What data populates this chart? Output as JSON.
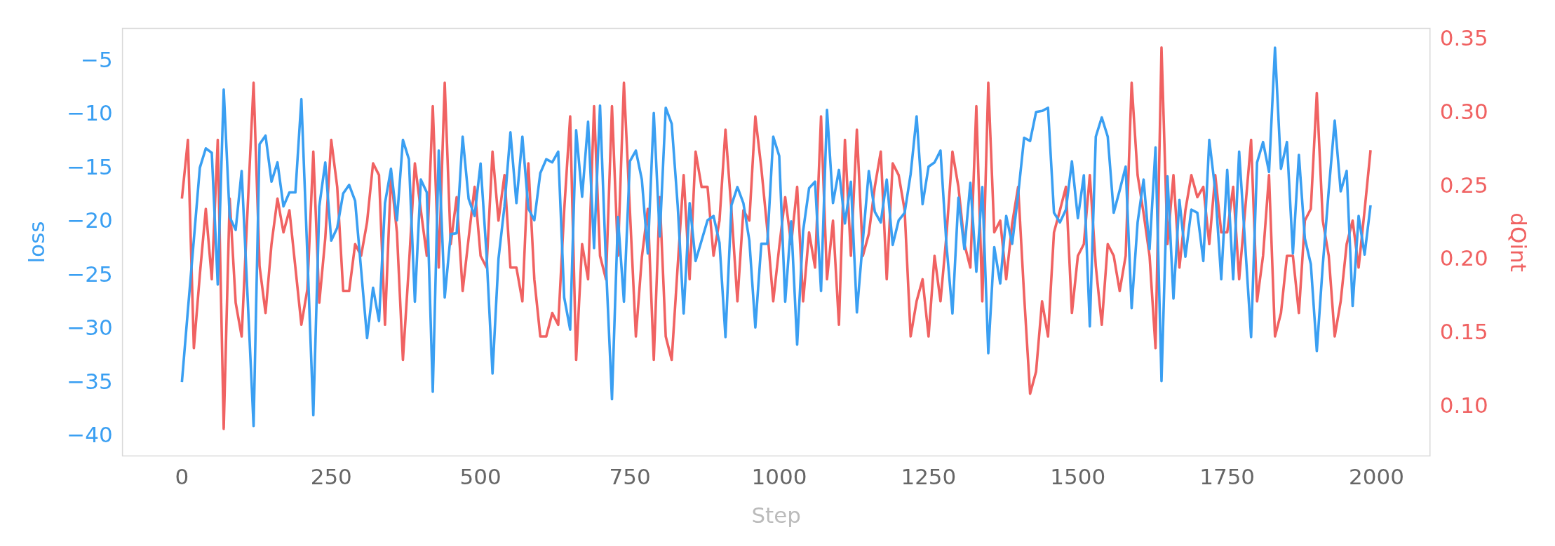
{
  "chart_data": {
    "type": "line",
    "xlabel": "Step",
    "ylabel": "loss",
    "y2label": "dQint",
    "x": [
      0,
      10,
      20,
      30,
      40,
      50,
      60,
      70,
      80,
      90,
      100,
      110,
      120,
      130,
      140,
      150,
      160,
      170,
      180,
      190,
      200,
      210,
      220,
      230,
      240,
      250,
      260,
      270,
      280,
      290,
      300,
      310,
      320,
      330,
      340,
      350,
      360,
      370,
      380,
      390,
      400,
      410,
      420,
      430,
      440,
      450,
      460,
      470,
      480,
      490,
      500,
      510,
      520,
      530,
      540,
      550,
      560,
      570,
      580,
      590,
      600,
      610,
      620,
      630,
      640,
      650,
      660,
      670,
      680,
      690,
      700,
      710,
      720,
      730,
      740,
      750,
      760,
      770,
      780,
      790,
      800,
      810,
      820,
      830,
      840,
      850,
      860,
      870,
      880,
      890,
      900,
      910,
      920,
      930,
      940,
      950,
      960,
      970,
      980,
      990,
      1000,
      1010,
      1020,
      1030,
      1040,
      1050,
      1060,
      1070,
      1080,
      1090,
      1100,
      1110,
      1120,
      1130,
      1140,
      1150,
      1160,
      1170,
      1180,
      1190,
      1200,
      1210,
      1220,
      1230,
      1240,
      1250,
      1260,
      1270,
      1280,
      1290,
      1300,
      1310,
      1320,
      1330,
      1340,
      1350,
      1360,
      1370,
      1380,
      1390,
      1400,
      1410,
      1420,
      1430,
      1440,
      1450,
      1460,
      1470,
      1480,
      1490,
      1500,
      1510,
      1520,
      1530,
      1540,
      1550,
      1560,
      1570,
      1580,
      1590,
      1600,
      1610,
      1620,
      1630,
      1640,
      1650,
      1660,
      1670,
      1680,
      1690,
      1700,
      1710,
      1720,
      1730,
      1740,
      1750,
      1760,
      1770,
      1780,
      1790,
      1800,
      1810,
      1820,
      1830,
      1840,
      1850,
      1860,
      1870,
      1880,
      1890,
      1900,
      1910,
      1920,
      1930,
      1940,
      1950,
      1960,
      1970,
      1980,
      1990
    ],
    "series": [
      {
        "color": "#3a9ff2",
        "values": [
          -34.9,
          -28.2,
          -21.6,
          -14.9,
          -13.1,
          -13.5,
          -25.8,
          -7.6,
          -19.5,
          -20.7,
          -15.2,
          -27,
          -39,
          -12.7,
          -11.9,
          -16.2,
          -14.4,
          -18.5,
          -17.2,
          -17.2,
          -8.5,
          -23,
          -38,
          -18.5,
          -14.4,
          -21.7,
          -20.5,
          -17.3,
          -16.5,
          -18,
          -24.4,
          -30.8,
          -26.1,
          -29.2,
          -18.2,
          -15,
          -19.8,
          -12.3,
          -14.1,
          -27.4,
          -16,
          -17.2,
          -35.8,
          -13.3,
          -27,
          -21.1,
          -21,
          -12,
          -17.8,
          -19.4,
          -14.5,
          -23,
          -34.1,
          -23.4,
          -18.5,
          -11.6,
          -18.2,
          -12,
          -18.7,
          -19.8,
          -15.4,
          -14.1,
          -14.4,
          -13.4,
          -27,
          -30,
          -11.4,
          -17.6,
          -10.6,
          -22.4,
          -9.1,
          -24,
          -36.5,
          -19.5,
          -27.4,
          -14.3,
          -13.3,
          -16,
          -22.9,
          -9.8,
          -21.3,
          -9.3,
          -10.8,
          -18.4,
          -28.5,
          -18.2,
          -23.6,
          -21.7,
          -19.8,
          -19.4,
          -21.9,
          -30.7,
          -18.4,
          -16.7,
          -18.2,
          -21.7,
          -29.8,
          -22,
          -22,
          -12,
          -13.8,
          -27.4,
          -19.9,
          -31.4,
          -20.8,
          -16.8,
          -16.2,
          -26.4,
          -9.5,
          -18.2,
          -15.1,
          -20.1,
          -16.2,
          -28.4,
          -21.7,
          -15.2,
          -19,
          -20,
          -16,
          -22.1,
          -19.8,
          -19.1,
          -15.5,
          -10.1,
          -18.3,
          -14.8,
          -14.4,
          -13.3,
          -22.1,
          -28.5,
          -17.7,
          -22.5,
          -16.3,
          -24.6,
          -16.7,
          -32.2,
          -22.3,
          -25.7,
          -19.4,
          -22,
          -17.4,
          -12.1,
          -12.4,
          -9.7,
          -9.6,
          -9.3,
          -19.1,
          -20,
          -18.8,
          -14.3,
          -19.6,
          -15.6,
          -29.7,
          -12,
          -10.2,
          -12,
          -19.1,
          -17,
          -14.8,
          -28,
          -20,
          -16,
          -22.5,
          -13,
          -34.8,
          -15.7,
          -27.1,
          -17.9,
          -23.2,
          -18.8,
          -19.1,
          -23.6,
          -12.3,
          -17,
          -25.3,
          -15.1,
          -25.3,
          -13.4,
          -22,
          -30.7,
          -14.4,
          -12.5,
          -15.3,
          -3.7,
          -15,
          -12.5,
          -22.9,
          -13.7,
          -21.5,
          -23.9,
          -32,
          -24,
          -17,
          -10.5,
          -17.1,
          -15.2,
          -27.8,
          -19.4,
          -23,
          -18.4
        ]
      },
      {
        "color": "#f06262",
        "axis": "y2",
        "values": [
          0.242,
          0.282,
          0.14,
          0.19,
          0.235,
          0.187,
          0.282,
          0.085,
          0.242,
          0.171,
          0.148,
          0.235,
          0.321,
          0.196,
          0.164,
          0.211,
          0.242,
          0.219,
          0.234,
          0.195,
          0.156,
          0.18,
          0.274,
          0.171,
          0.215,
          0.282,
          0.25,
          0.179,
          0.179,
          0.211,
          0.203,
          0.226,
          0.266,
          0.258,
          0.156,
          0.258,
          0.219,
          0.132,
          0.196,
          0.266,
          0.234,
          0.203,
          0.305,
          0.195,
          0.321,
          0.211,
          0.243,
          0.179,
          0.215,
          0.25,
          0.203,
          0.195,
          0.274,
          0.227,
          0.258,
          0.195,
          0.195,
          0.172,
          0.266,
          0.187,
          0.148,
          0.148,
          0.164,
          0.156,
          0.234,
          0.298,
          0.132,
          0.211,
          0.187,
          0.305,
          0.203,
          0.187,
          0.305,
          0.203,
          0.321,
          0.234,
          0.148,
          0.202,
          0.235,
          0.132,
          0.243,
          0.148,
          0.132,
          0.196,
          0.258,
          0.187,
          0.274,
          0.25,
          0.25,
          0.203,
          0.227,
          0.289,
          0.234,
          0.172,
          0.234,
          0.227,
          0.298,
          0.263,
          0.221,
          0.172,
          0.209,
          0.243,
          0.211,
          0.25,
          0.172,
          0.219,
          0.195,
          0.298,
          0.187,
          0.227,
          0.156,
          0.282,
          0.203,
          0.289,
          0.203,
          0.218,
          0.25,
          0.274,
          0.187,
          0.266,
          0.258,
          0.234,
          0.148,
          0.172,
          0.187,
          0.148,
          0.203,
          0.172,
          0.217,
          0.274,
          0.25,
          0.211,
          0.195,
          0.305,
          0.172,
          0.321,
          0.219,
          0.227,
          0.187,
          0.225,
          0.25,
          0.176,
          0.109,
          0.124,
          0.172,
          0.148,
          0.219,
          0.234,
          0.25,
          0.164,
          0.203,
          0.211,
          0.258,
          0.196,
          0.156,
          0.211,
          0.203,
          0.179,
          0.203,
          0.321,
          0.258,
          0.232,
          0.203,
          0.14,
          0.345,
          0.211,
          0.258,
          0.195,
          0.234,
          0.258,
          0.243,
          0.25,
          0.211,
          0.258,
          0.219,
          0.219,
          0.25,
          0.187,
          0.234,
          0.282,
          0.172,
          0.203,
          0.258,
          0.148,
          0.164,
          0.203,
          0.203,
          0.164,
          0.227,
          0.235,
          0.314,
          0.227,
          0.203,
          0.148,
          0.172,
          0.211,
          0.227,
          0.195,
          0.234,
          0.275
        ]
      }
    ],
    "xlim": [
      -99.5,
      2089.5
    ],
    "xticks": [
      0,
      250,
      500,
      750,
      1000,
      1250,
      1500,
      1750,
      2000
    ],
    "ylim": [
      -41.8,
      -1.9
    ],
    "yticks": [
      {
        "value": -40,
        "label": "−40"
      },
      {
        "value": -35,
        "label": "−35"
      },
      {
        "value": -30,
        "label": "−30"
      },
      {
        "value": -25,
        "label": "−25"
      },
      {
        "value": -20,
        "label": "−20"
      },
      {
        "value": -15,
        "label": "−15"
      },
      {
        "value": -10,
        "label": "−10"
      },
      {
        "value": -5,
        "label": "−5"
      }
    ],
    "y2lim": [
      0.0665,
      0.358
    ],
    "y2ticks": [
      {
        "value": 0.1,
        "label": "0.10"
      },
      {
        "value": 0.15,
        "label": "0.15"
      },
      {
        "value": 0.2,
        "label": "0.20"
      },
      {
        "value": 0.25,
        "label": "0.25"
      },
      {
        "value": 0.3,
        "label": "0.30"
      },
      {
        "value": 0.35,
        "label": "0.35"
      }
    ]
  }
}
